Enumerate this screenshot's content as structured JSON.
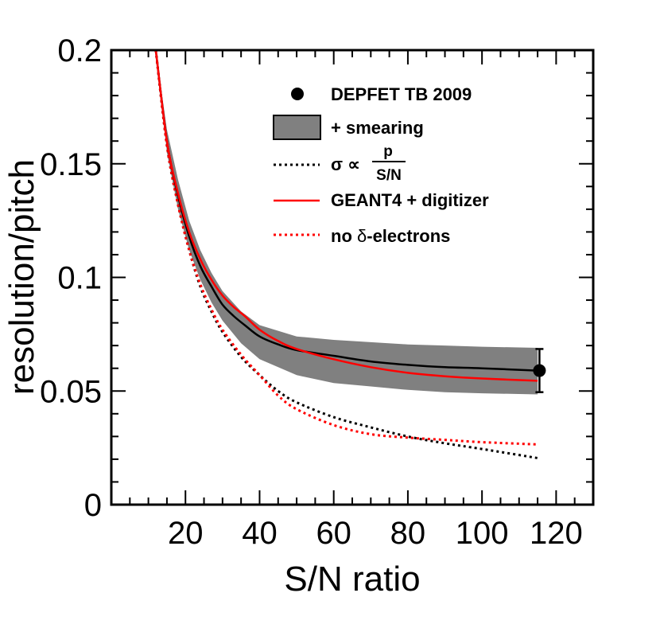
{
  "chart_data": {
    "type": "line",
    "title": "",
    "xlabel": "S/N ratio",
    "ylabel": "resolution/pitch",
    "xlim": [
      0,
      130
    ],
    "ylim": [
      0,
      0.2
    ],
    "x_ticks": [
      20,
      40,
      60,
      80,
      100,
      120
    ],
    "x_tick_labels": [
      "20",
      "40",
      "60",
      "80",
      "100",
      "120"
    ],
    "y_ticks": [
      0,
      0.05,
      0.1,
      0.15,
      0.2
    ],
    "y_tick_labels": [
      "0",
      "0.05",
      "0.1",
      "0.15",
      "0.2"
    ],
    "legend_position": "top-right",
    "legend": {
      "data": "DEPFET TB 2009",
      "band": "+ smearing",
      "sigma_prefix": "σ ∝",
      "sigma_num": "p",
      "sigma_den": "S/N",
      "geant": "GEANT4 + digitizer",
      "nodelta_prefix": "no ",
      "nodelta_delta": "δ",
      "nodelta_suffix": "-electrons"
    },
    "data_point": {
      "name": "DEPFET TB 2009",
      "x": 115.5,
      "y": 0.059,
      "err": 0.0095,
      "color": "#000000"
    },
    "band": {
      "name": "+ smearing",
      "color": "#808080",
      "x": [
        12,
        15,
        18,
        21,
        24,
        27,
        30,
        35,
        40,
        50,
        60,
        70,
        80,
        90,
        100,
        115
      ],
      "upper": [
        0.2,
        0.165,
        0.143,
        0.125,
        0.112,
        0.102,
        0.094,
        0.085,
        0.079,
        0.074,
        0.0725,
        0.0715,
        0.0705,
        0.07,
        0.0695,
        0.069
      ],
      "lower": [
        0.2,
        0.155,
        0.13,
        0.112,
        0.099,
        0.089,
        0.081,
        0.071,
        0.064,
        0.057,
        0.0535,
        0.052,
        0.0505,
        0.0495,
        0.049,
        0.0485
      ]
    },
    "series": [
      {
        "name": "smearing central",
        "color": "#000000",
        "style": "solid",
        "x": [
          12,
          15,
          18,
          21,
          24,
          27,
          30,
          33,
          36,
          40,
          45,
          50,
          60,
          70,
          80,
          90,
          100,
          115
        ],
        "y": [
          0.2,
          0.16,
          0.136,
          0.118,
          0.105,
          0.096,
          0.088,
          0.083,
          0.079,
          0.074,
          0.0705,
          0.068,
          0.0655,
          0.063,
          0.0615,
          0.0605,
          0.06,
          0.059
        ]
      },
      {
        "name": "GEANT4 + digitizer",
        "color": "#ff0000",
        "style": "solid",
        "x": [
          12,
          15,
          18,
          21,
          24,
          27,
          30,
          33,
          36,
          40,
          45,
          50,
          60,
          70,
          80,
          90,
          100,
          115
        ],
        "y": [
          0.2,
          0.16,
          0.137,
          0.12,
          0.108,
          0.099,
          0.092,
          0.087,
          0.083,
          0.077,
          0.072,
          0.0685,
          0.064,
          0.0605,
          0.058,
          0.0565,
          0.0555,
          0.0545
        ]
      },
      {
        "name": "σ ∝ p / (S/N)",
        "color": "#000000",
        "style": "dotted",
        "x": [
          12,
          15,
          18,
          21,
          24,
          27,
          30,
          35,
          40,
          45,
          50,
          60,
          70,
          80,
          90,
          100,
          115
        ],
        "y": [
          0.2,
          0.158,
          0.132,
          0.112,
          0.096,
          0.085,
          0.076,
          0.065,
          0.057,
          0.05,
          0.045,
          0.0385,
          0.034,
          0.03,
          0.027,
          0.0245,
          0.0205
        ]
      },
      {
        "name": "no δ-electrons",
        "color": "#ff0000",
        "style": "dotted",
        "x": [
          12,
          15,
          18,
          21,
          24,
          27,
          30,
          35,
          40,
          45,
          50,
          60,
          70,
          80,
          90,
          100,
          115
        ],
        "y": [
          0.2,
          0.158,
          0.132,
          0.112,
          0.097,
          0.086,
          0.077,
          0.066,
          0.057,
          0.048,
          0.042,
          0.035,
          0.031,
          0.0295,
          0.0285,
          0.0275,
          0.0265
        ]
      }
    ]
  }
}
